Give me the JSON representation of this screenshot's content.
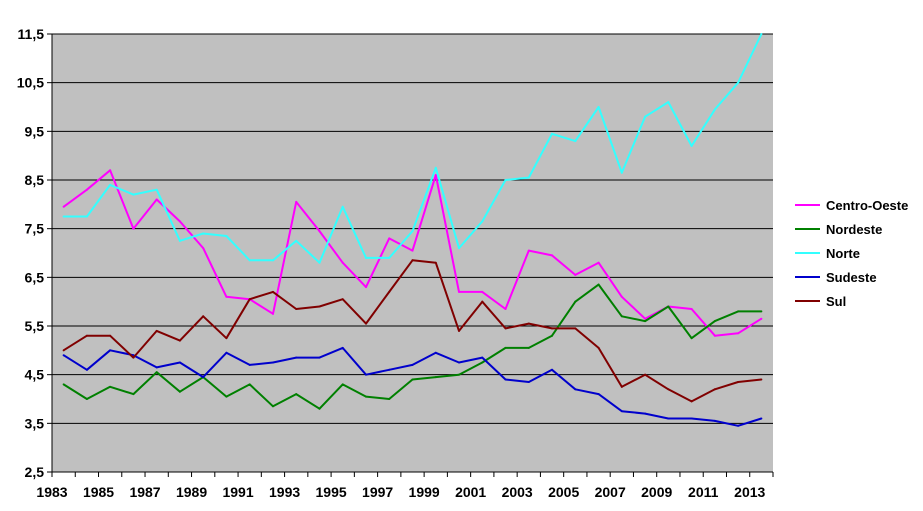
{
  "chart_data": {
    "type": "line",
    "title": "",
    "xlabel": "",
    "ylabel": "",
    "xlim": [
      1983,
      2014
    ],
    "ylim": [
      2.5,
      11.5
    ],
    "yticks": [
      "2,5",
      "3,5",
      "4,5",
      "5,5",
      "6,5",
      "7,5",
      "8,5",
      "9,5",
      "10,5",
      "11,5"
    ],
    "xticks": [
      "1983",
      "1985",
      "1987",
      "1989",
      "1991",
      "1993",
      "1995",
      "1997",
      "1999",
      "2001",
      "2003",
      "2005",
      "2007",
      "2009",
      "2011",
      "2013"
    ],
    "grid": "horizontal",
    "legend_position": "right",
    "plot_background": "#c0c0c0",
    "x": [
      1983.5,
      1984.5,
      1985.5,
      1986.5,
      1987.5,
      1988.5,
      1989.5,
      1990.5,
      1991.5,
      1992.5,
      1993.5,
      1994.5,
      1995.5,
      1996.5,
      1997.5,
      1998.5,
      1999.5,
      2000.5,
      2001.5,
      2002.5,
      2003.5,
      2004.5,
      2005.5,
      2006.5,
      2007.5,
      2008.5,
      2009.5,
      2010.5,
      2011.5,
      2012.5,
      2013.5
    ],
    "series": [
      {
        "name": "Centro-Oeste",
        "color": "#ff00ff",
        "values": [
          7.95,
          8.3,
          8.7,
          7.5,
          8.1,
          7.65,
          7.1,
          6.1,
          6.05,
          5.75,
          8.05,
          7.45,
          6.8,
          6.3,
          7.3,
          7.05,
          8.6,
          6.2,
          6.2,
          5.85,
          7.05,
          6.95,
          6.55,
          6.8,
          6.1,
          5.65,
          5.9,
          5.85,
          5.3,
          5.35,
          5.65
        ]
      },
      {
        "name": "Nordeste",
        "color": "#008000",
        "values": [
          4.3,
          4.0,
          4.25,
          4.1,
          4.55,
          4.15,
          4.45,
          4.05,
          4.3,
          3.85,
          4.1,
          3.8,
          4.3,
          4.05,
          4.0,
          4.4,
          4.45,
          4.5,
          4.75,
          5.05,
          5.05,
          5.3,
          6.0,
          6.35,
          5.7,
          5.6,
          5.9,
          5.25,
          5.6,
          5.8,
          5.8
        ]
      },
      {
        "name": "Norte",
        "color": "#33ffff",
        "values": [
          7.75,
          7.75,
          8.4,
          8.2,
          8.3,
          7.25,
          7.4,
          7.35,
          6.85,
          6.85,
          7.25,
          6.8,
          7.95,
          6.9,
          6.9,
          7.45,
          8.75,
          7.1,
          7.65,
          8.5,
          8.55,
          9.45,
          9.3,
          10.0,
          8.65,
          9.8,
          10.1,
          9.2,
          9.95,
          10.5,
          11.5
        ]
      },
      {
        "name": "Sudeste",
        "color": "#0000cc",
        "values": [
          4.9,
          4.6,
          5.0,
          4.9,
          4.65,
          4.75,
          4.45,
          4.95,
          4.7,
          4.75,
          4.85,
          4.85,
          5.05,
          4.5,
          4.6,
          4.7,
          4.95,
          4.75,
          4.85,
          4.4,
          4.35,
          4.6,
          4.2,
          4.1,
          3.75,
          3.7,
          3.6,
          3.6,
          3.55,
          3.45,
          3.6
        ]
      },
      {
        "name": "Sul",
        "color": "#800000",
        "values": [
          5.0,
          5.3,
          5.3,
          4.85,
          5.4,
          5.2,
          5.7,
          5.25,
          6.05,
          6.2,
          5.85,
          5.9,
          6.05,
          5.55,
          6.2,
          6.85,
          6.8,
          5.4,
          6.0,
          5.45,
          5.55,
          5.45,
          5.45,
          5.05,
          4.25,
          4.5,
          4.2,
          3.95,
          4.2,
          4.35,
          4.4
        ]
      }
    ]
  }
}
